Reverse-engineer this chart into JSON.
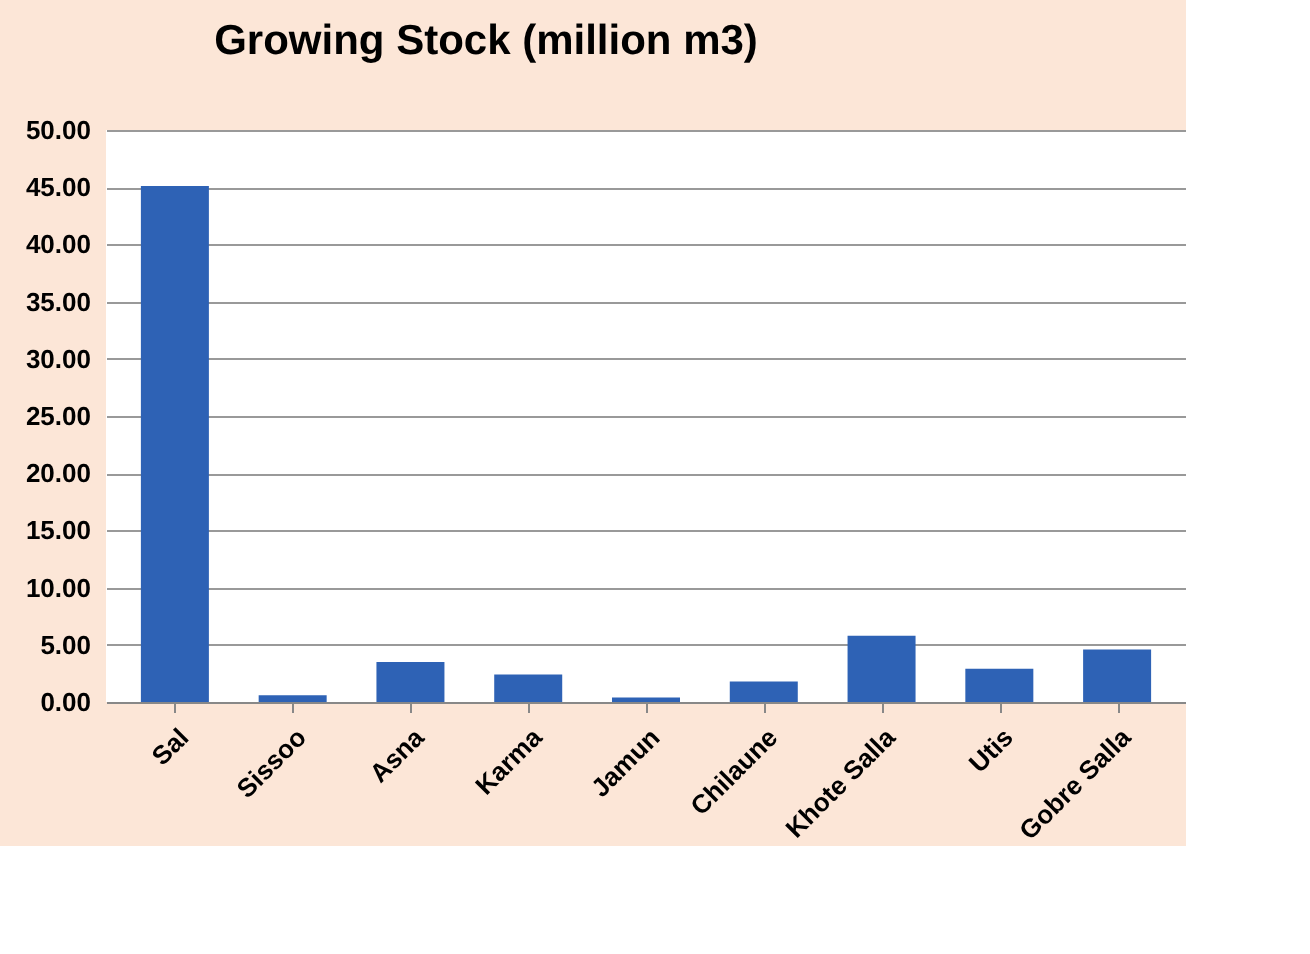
{
  "chart_data": {
    "type": "bar",
    "title": "Growing Stock (million m3)",
    "categories": [
      "Sal",
      "Sissoo",
      "Asna",
      "Karma",
      "Jamun",
      "Chilaune",
      "Khote Salla",
      "Utis",
      "Gobre Salla"
    ],
    "values": [
      45.1,
      0.6,
      3.5,
      2.4,
      0.4,
      1.8,
      5.8,
      2.9,
      4.6
    ],
    "color": "#2e62b5",
    "ylim": [
      0,
      50
    ],
    "yticks": [
      {
        "value": 0,
        "label": "0.00"
      },
      {
        "value": 5,
        "label": "5.00"
      },
      {
        "value": 10,
        "label": "10.00"
      },
      {
        "value": 15,
        "label": "15.00"
      },
      {
        "value": 20,
        "label": "20.00"
      },
      {
        "value": 25,
        "label": "25.00"
      },
      {
        "value": 30,
        "label": "30.00"
      },
      {
        "value": 35,
        "label": "35.00"
      },
      {
        "value": 40,
        "label": "40.00"
      },
      {
        "value": 45,
        "label": "45.00"
      },
      {
        "value": 50,
        "label": "50.00"
      }
    ],
    "grid": "y",
    "legend": false
  }
}
